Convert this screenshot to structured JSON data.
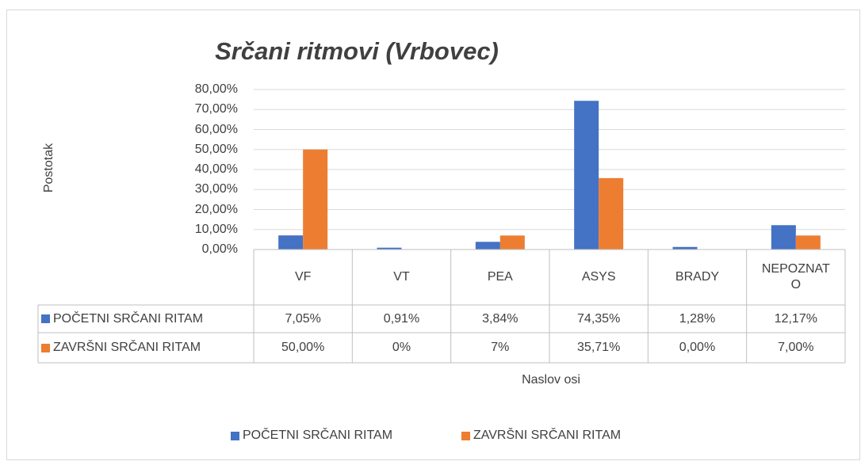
{
  "chart_data": {
    "type": "bar",
    "title": "Srčani ritmovi (Vrbovec)",
    "y_label": "Postotak",
    "x_label": "Naslov osi",
    "categories": [
      "VF",
      "VT",
      "PEA",
      "ASYS",
      "BRADY",
      "NEPOZNATO"
    ],
    "series": [
      {
        "name": "POČETNI SRČANI RITAM",
        "color": "#4472c4",
        "values": [
          7.05,
          0.91,
          3.84,
          74.35,
          1.28,
          12.17
        ],
        "value_labels": [
          "7,05%",
          "0,91%",
          "3,84%",
          "74,35%",
          "1,28%",
          "12,17%"
        ]
      },
      {
        "name": "ZAVRŠNI SRČANI RITAM",
        "color": "#ed7d31",
        "values": [
          50,
          0,
          7,
          35.71,
          0,
          7
        ],
        "value_labels": [
          "50,00%",
          "0%",
          "7%",
          "35,71%",
          "0,00%",
          "7,00%"
        ]
      }
    ],
    "ylim": [
      0,
      80
    ],
    "yticks": [
      {
        "value": 0,
        "label": "0,00%"
      },
      {
        "value": 10,
        "label": "10,00%"
      },
      {
        "value": 20,
        "label": "20,00%"
      },
      {
        "value": 30,
        "label": "30,00%"
      },
      {
        "value": 40,
        "label": "40,00%"
      },
      {
        "value": 50,
        "label": "50,00%"
      },
      {
        "value": 60,
        "label": "60,00%"
      },
      {
        "value": 70,
        "label": "70,00%"
      },
      {
        "value": 80,
        "label": "80,00%"
      }
    ],
    "grid": true,
    "legend": "bottom",
    "data_table": true
  }
}
